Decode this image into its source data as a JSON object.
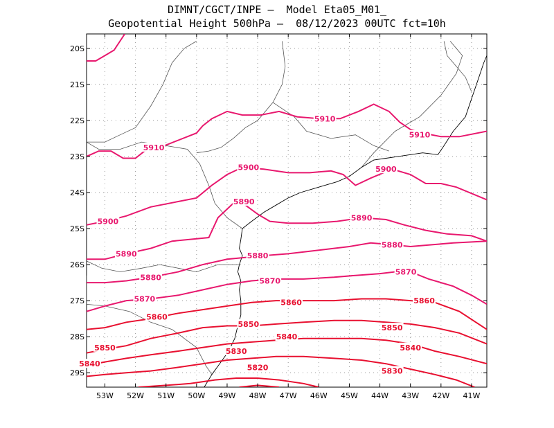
{
  "title": {
    "line1": "DIMNT/CGCT/INPE –  Model Eta05_M01_",
    "line2": "Geopotential Height 500hPa –  08/12/2023 00UTC fct=10h"
  },
  "axes": {
    "lat_labels": [
      "20S",
      "21S",
      "22S",
      "23S",
      "24S",
      "25S",
      "26S",
      "27S",
      "28S",
      "29S"
    ],
    "lat_values": [
      -20,
      -21,
      -22,
      -23,
      -24,
      -25,
      -26,
      -27,
      -28,
      -29
    ],
    "lon_labels": [
      "53W",
      "52W",
      "51W",
      "50W",
      "49W",
      "48W",
      "47W",
      "46W",
      "45W",
      "44W",
      "43W",
      "42W",
      "41W"
    ],
    "lon_values": [
      -53,
      -52,
      -51,
      -50,
      -49,
      -48,
      -47,
      -46,
      -45,
      -44,
      -43,
      -42,
      -41
    ],
    "lon_range": [
      -53.6,
      -40.5
    ],
    "lat_range": [
      -29.4,
      -19.6
    ],
    "grid": true
  },
  "colors": {
    "contour_magenta": "#e8186e",
    "contour_red": "#e81030",
    "coast": "#000000",
    "border": "#555555",
    "grid": "#999999"
  },
  "contours": [
    {
      "value": 5910,
      "color": "magenta",
      "pts": [
        [
          -53.6,
          -20.35
        ],
        [
          -53.3,
          -20.35
        ],
        [
          -53.0,
          -20.2
        ],
        [
          -52.7,
          -20.05
        ],
        [
          -52.35,
          -19.6
        ]
      ]
    },
    {
      "value": 5910,
      "color": "magenta",
      "pts": [
        [
          -53.6,
          -23.0
        ],
        [
          -53.2,
          -22.85
        ],
        [
          -52.8,
          -22.85
        ],
        [
          -52.4,
          -23.05
        ],
        [
          -52.0,
          -23.05
        ],
        [
          -51.7,
          -22.85
        ],
        [
          -51.2,
          -22.75
        ],
        [
          -50.6,
          -22.55
        ],
        [
          -50.0,
          -22.35
        ],
        [
          -49.8,
          -22.15
        ],
        [
          -49.5,
          -21.95
        ],
        [
          -49.0,
          -21.75
        ],
        [
          -48.5,
          -21.85
        ],
        [
          -47.9,
          -21.85
        ],
        [
          -47.3,
          -21.75
        ],
        [
          -46.7,
          -21.9
        ],
        [
          -46.0,
          -21.95
        ],
        [
          -45.3,
          -21.95
        ],
        [
          -44.7,
          -21.75
        ],
        [
          -44.2,
          -21.55
        ],
        [
          -43.7,
          -21.75
        ],
        [
          -43.35,
          -22.05
        ],
        [
          -43.0,
          -22.25
        ],
        [
          -42.6,
          -22.35
        ],
        [
          -42.0,
          -22.45
        ],
        [
          -41.4,
          -22.45
        ],
        [
          -40.5,
          -22.3
        ]
      ]
    },
    {
      "value": 5900,
      "color": "magenta",
      "pts": [
        [
          -53.6,
          -24.9
        ],
        [
          -53.0,
          -24.8
        ],
        [
          -52.3,
          -24.65
        ],
        [
          -51.5,
          -24.4
        ],
        [
          -50.6,
          -24.25
        ],
        [
          -50.0,
          -24.15
        ],
        [
          -49.5,
          -23.8
        ],
        [
          -49.0,
          -23.5
        ],
        [
          -48.5,
          -23.3
        ],
        [
          -47.8,
          -23.35
        ],
        [
          -47.0,
          -23.45
        ],
        [
          -46.3,
          -23.45
        ],
        [
          -45.6,
          -23.4
        ],
        [
          -45.2,
          -23.5
        ],
        [
          -44.8,
          -23.8
        ],
        [
          -44.3,
          -23.6
        ],
        [
          -43.6,
          -23.35
        ],
        [
          -43.0,
          -23.5
        ],
        [
          -42.5,
          -23.75
        ],
        [
          -42.0,
          -23.75
        ],
        [
          -41.5,
          -23.85
        ],
        [
          -40.5,
          -24.2
        ]
      ]
    },
    {
      "value": 5890,
      "color": "magenta",
      "pts": [
        [
          -53.6,
          -25.85
        ],
        [
          -53.0,
          -25.85
        ],
        [
          -52.3,
          -25.7
        ],
        [
          -51.5,
          -25.55
        ],
        [
          -50.8,
          -25.35
        ],
        [
          -50.2,
          -25.3
        ],
        [
          -49.6,
          -25.25
        ],
        [
          -49.3,
          -24.7
        ],
        [
          -48.8,
          -24.3
        ],
        [
          -48.4,
          -24.35
        ],
        [
          -48.0,
          -24.6
        ],
        [
          -47.6,
          -24.8
        ],
        [
          -47.0,
          -24.85
        ],
        [
          -46.2,
          -24.85
        ],
        [
          -45.4,
          -24.8
        ],
        [
          -44.6,
          -24.7
        ],
        [
          -43.8,
          -24.75
        ],
        [
          -43.2,
          -24.9
        ],
        [
          -42.5,
          -25.05
        ],
        [
          -41.8,
          -25.15
        ],
        [
          -41.0,
          -25.2
        ],
        [
          -40.5,
          -25.35
        ]
      ]
    },
    {
      "value": 5880,
      "color": "magenta",
      "pts": [
        [
          -53.6,
          -26.5
        ],
        [
          -53.0,
          -26.5
        ],
        [
          -52.3,
          -26.45
        ],
        [
          -51.5,
          -26.35
        ],
        [
          -50.6,
          -26.2
        ],
        [
          -49.8,
          -26.0
        ],
        [
          -49.0,
          -25.85
        ],
        [
          -48.4,
          -25.8
        ],
        [
          -47.8,
          -25.75
        ],
        [
          -47.0,
          -25.7
        ],
        [
          -46.0,
          -25.6
        ],
        [
          -45.0,
          -25.5
        ],
        [
          -44.3,
          -25.4
        ],
        [
          -43.6,
          -25.45
        ],
        [
          -43.0,
          -25.5
        ],
        [
          -42.3,
          -25.45
        ],
        [
          -41.6,
          -25.4
        ],
        [
          -40.5,
          -25.35
        ]
      ]
    },
    {
      "value": 5870,
      "color": "magenta",
      "pts": [
        [
          -53.6,
          -27.3
        ],
        [
          -53.0,
          -27.15
        ],
        [
          -52.3,
          -27.0
        ],
        [
          -51.5,
          -26.95
        ],
        [
          -50.6,
          -26.85
        ],
        [
          -49.8,
          -26.7
        ],
        [
          -49.0,
          -26.55
        ],
        [
          -48.2,
          -26.45
        ],
        [
          -47.4,
          -26.4
        ],
        [
          -46.5,
          -26.4
        ],
        [
          -45.5,
          -26.35
        ],
        [
          -44.8,
          -26.3
        ],
        [
          -44.0,
          -26.25
        ],
        [
          -43.5,
          -26.2
        ],
        [
          -43.0,
          -26.2
        ],
        [
          -42.4,
          -26.4
        ],
        [
          -41.6,
          -26.6
        ],
        [
          -41.0,
          -26.85
        ],
        [
          -40.5,
          -27.1
        ]
      ]
    },
    {
      "value": 5860,
      "color": "red",
      "pts": [
        [
          -53.6,
          -27.8
        ],
        [
          -53.0,
          -27.75
        ],
        [
          -52.3,
          -27.6
        ],
        [
          -51.5,
          -27.5
        ],
        [
          -50.6,
          -27.35
        ],
        [
          -49.8,
          -27.25
        ],
        [
          -49.0,
          -27.15
        ],
        [
          -48.2,
          -27.05
        ],
        [
          -47.4,
          -27.0
        ],
        [
          -46.5,
          -27.0
        ],
        [
          -45.5,
          -27.0
        ],
        [
          -44.6,
          -26.95
        ],
        [
          -43.8,
          -26.95
        ],
        [
          -43.0,
          -27.0
        ],
        [
          -42.2,
          -27.05
        ],
        [
          -41.4,
          -27.3
        ],
        [
          -40.5,
          -27.8
        ]
      ]
    },
    {
      "value": 5850,
      "color": "red",
      "pts": [
        [
          -53.6,
          -28.45
        ],
        [
          -53.0,
          -28.35
        ],
        [
          -52.3,
          -28.25
        ],
        [
          -51.5,
          -28.05
        ],
        [
          -50.6,
          -27.9
        ],
        [
          -49.8,
          -27.75
        ],
        [
          -49.0,
          -27.7
        ],
        [
          -48.2,
          -27.7
        ],
        [
          -47.4,
          -27.65
        ],
        [
          -46.5,
          -27.6
        ],
        [
          -45.5,
          -27.55
        ],
        [
          -44.6,
          -27.55
        ],
        [
          -43.8,
          -27.6
        ],
        [
          -43.0,
          -27.65
        ],
        [
          -42.2,
          -27.75
        ],
        [
          -41.4,
          -27.9
        ],
        [
          -40.5,
          -28.2
        ]
      ]
    },
    {
      "value": 5840,
      "color": "red",
      "pts": [
        [
          -53.6,
          -28.8
        ],
        [
          -53.0,
          -28.7
        ],
        [
          -52.3,
          -28.6
        ],
        [
          -51.5,
          -28.5
        ],
        [
          -50.6,
          -28.4
        ],
        [
          -49.8,
          -28.3
        ],
        [
          -49.0,
          -28.2
        ],
        [
          -48.2,
          -28.15
        ],
        [
          -47.4,
          -28.1
        ],
        [
          -46.5,
          -28.05
        ],
        [
          -45.5,
          -28.05
        ],
        [
          -44.6,
          -28.05
        ],
        [
          -43.8,
          -28.1
        ],
        [
          -43.0,
          -28.2
        ],
        [
          -42.2,
          -28.4
        ],
        [
          -41.4,
          -28.55
        ],
        [
          -40.5,
          -28.75
        ]
      ]
    },
    {
      "value": 5830,
      "color": "red",
      "pts": [
        [
          -53.6,
          -29.1
        ],
        [
          -53.0,
          -29.05
        ],
        [
          -52.3,
          -29.0
        ],
        [
          -51.5,
          -28.95
        ],
        [
          -50.6,
          -28.85
        ],
        [
          -49.8,
          -28.75
        ],
        [
          -49.0,
          -28.65
        ],
        [
          -48.2,
          -28.6
        ],
        [
          -47.4,
          -28.55
        ],
        [
          -46.5,
          -28.55
        ],
        [
          -45.5,
          -28.6
        ],
        [
          -44.6,
          -28.65
        ],
        [
          -43.8,
          -28.75
        ],
        [
          -43.0,
          -28.9
        ],
        [
          -42.2,
          -29.05
        ],
        [
          -41.5,
          -29.2
        ],
        [
          -40.9,
          -29.4
        ]
      ]
    },
    {
      "value": 5820,
      "color": "red",
      "pts": [
        [
          -51.9,
          -29.4
        ],
        [
          -51.0,
          -29.35
        ],
        [
          -50.2,
          -29.3
        ],
        [
          -49.4,
          -29.2
        ],
        [
          -48.7,
          -29.15
        ],
        [
          -48.0,
          -29.15
        ],
        [
          -47.3,
          -29.2
        ],
        [
          -46.5,
          -29.3
        ],
        [
          -46.0,
          -29.4
        ]
      ]
    },
    {
      "value": 5810,
      "color": "red",
      "pts": [
        [
          -48.6,
          -29.4
        ],
        [
          -48.0,
          -29.35
        ],
        [
          -47.3,
          -29.4
        ]
      ]
    }
  ],
  "contour_labels": [
    {
      "text": "5910",
      "lon": -51.4,
      "lat": -22.75
    },
    {
      "text": "5910",
      "lon": -45.8,
      "lat": -21.95
    },
    {
      "text": "5910",
      "lon": -42.7,
      "lat": -22.4
    },
    {
      "text": "5900",
      "lon": -48.3,
      "lat": -23.3
    },
    {
      "text": "5900",
      "lon": -43.8,
      "lat": -23.35
    },
    {
      "text": "5900",
      "lon": -52.9,
      "lat": -24.8
    },
    {
      "text": "5890",
      "lon": -48.45,
      "lat": -24.25
    },
    {
      "text": "5890",
      "lon": -52.3,
      "lat": -25.7
    },
    {
      "text": "5890",
      "lon": -44.6,
      "lat": -24.7
    },
    {
      "text": "5880",
      "lon": -51.5,
      "lat": -26.35
    },
    {
      "text": "5880",
      "lon": -48.0,
      "lat": -25.75
    },
    {
      "text": "5880",
      "lon": -43.6,
      "lat": -25.45
    },
    {
      "text": "5870",
      "lon": -51.7,
      "lat": -26.95
    },
    {
      "text": "5870",
      "lon": -47.6,
      "lat": -26.45
    },
    {
      "text": "5870",
      "lon": -43.15,
      "lat": -26.2
    },
    {
      "text": "5860",
      "lon": -51.3,
      "lat": -27.45
    },
    {
      "text": "5860",
      "lon": -46.9,
      "lat": -27.05
    },
    {
      "text": "5860",
      "lon": -42.55,
      "lat": -27.0
    },
    {
      "text": "5850",
      "lon": -53.0,
      "lat": -28.3
    },
    {
      "text": "5850",
      "lon": -48.3,
      "lat": -27.65
    },
    {
      "text": "5850",
      "lon": -43.6,
      "lat": -27.75
    },
    {
      "text": "5840",
      "lon": -47.05,
      "lat": -28.0
    },
    {
      "text": "5840",
      "lon": -43.0,
      "lat": -28.3
    },
    {
      "text": "5840",
      "lon": -53.5,
      "lat": -28.75
    },
    {
      "text": "5830",
      "lon": -48.7,
      "lat": -28.4
    },
    {
      "text": "5830",
      "lon": -43.6,
      "lat": -28.95
    },
    {
      "text": "5820",
      "lon": -48.0,
      "lat": -28.85
    }
  ],
  "coastline": [
    [
      -48.5,
      -25.0
    ],
    [
      -48.55,
      -25.3
    ],
    [
      -48.6,
      -25.55
    ],
    [
      -48.5,
      -25.75
    ],
    [
      -48.6,
      -26.0
    ],
    [
      -48.65,
      -26.2
    ],
    [
      -48.55,
      -26.45
    ],
    [
      -48.6,
      -26.7
    ],
    [
      -48.55,
      -27.0
    ],
    [
      -48.55,
      -27.4
    ],
    [
      -48.65,
      -27.7
    ],
    [
      -48.75,
      -28.05
    ],
    [
      -48.95,
      -28.4
    ],
    [
      -49.2,
      -28.7
    ],
    [
      -49.5,
      -29.05
    ],
    [
      -49.75,
      -29.4
    ]
  ],
  "coastline_se": [
    [
      -48.5,
      -25.0
    ],
    [
      -48.2,
      -24.8
    ],
    [
      -47.8,
      -24.55
    ],
    [
      -47.4,
      -24.35
    ],
    [
      -47.0,
      -24.15
    ],
    [
      -46.6,
      -24.0
    ],
    [
      -46.2,
      -23.9
    ],
    [
      -45.8,
      -23.8
    ],
    [
      -45.4,
      -23.7
    ],
    [
      -45.0,
      -23.55
    ],
    [
      -44.6,
      -23.3
    ],
    [
      -44.2,
      -23.1
    ],
    [
      -43.8,
      -23.05
    ],
    [
      -43.4,
      -23.0
    ],
    [
      -43.0,
      -22.95
    ],
    [
      -42.6,
      -22.9
    ],
    [
      -42.1,
      -22.95
    ],
    [
      -41.9,
      -22.7
    ],
    [
      -41.6,
      -22.3
    ],
    [
      -41.2,
      -21.9
    ],
    [
      -41.0,
      -21.4
    ],
    [
      -40.8,
      -20.9
    ],
    [
      -40.6,
      -20.4
    ],
    [
      -40.5,
      -20.2
    ]
  ],
  "borders": [
    [
      [
        -50.0,
        -22.9
      ],
      [
        -49.6,
        -22.85
      ],
      [
        -49.2,
        -22.75
      ],
      [
        -48.8,
        -22.5
      ],
      [
        -48.4,
        -22.2
      ],
      [
        -48.0,
        -22.0
      ],
      [
        -47.5,
        -21.5
      ],
      [
        -47.2,
        -21.0
      ],
      [
        -47.1,
        -20.5
      ],
      [
        -47.2,
        -19.8
      ]
    ],
    [
      [
        -47.5,
        -21.5
      ],
      [
        -46.8,
        -21.9
      ],
      [
        -46.4,
        -22.3
      ],
      [
        -45.6,
        -22.5
      ],
      [
        -44.8,
        -22.4
      ],
      [
        -44.2,
        -22.7
      ],
      [
        -43.7,
        -22.85
      ]
    ],
    [
      [
        -44.6,
        -23.3
      ],
      [
        -44.2,
        -22.9
      ],
      [
        -43.5,
        -22.3
      ],
      [
        -42.7,
        -21.9
      ],
      [
        -42.0,
        -21.3
      ],
      [
        -41.5,
        -20.7
      ],
      [
        -41.3,
        -20.2
      ],
      [
        -41.7,
        -19.8
      ]
    ],
    [
      [
        -53.6,
        -22.6
      ],
      [
        -53.0,
        -22.6
      ],
      [
        -52.5,
        -22.4
      ],
      [
        -52.0,
        -22.2
      ],
      [
        -51.5,
        -21.6
      ],
      [
        -51.1,
        -21.0
      ],
      [
        -50.8,
        -20.4
      ],
      [
        -50.4,
        -20.0
      ],
      [
        -50.0,
        -19.8
      ]
    ],
    [
      [
        -53.6,
        -22.6
      ],
      [
        -53.2,
        -22.8
      ],
      [
        -52.5,
        -22.8
      ],
      [
        -51.8,
        -22.6
      ],
      [
        -51.0,
        -22.7
      ],
      [
        -50.3,
        -22.8
      ],
      [
        -49.9,
        -23.2
      ],
      [
        -49.6,
        -23.8
      ],
      [
        -49.4,
        -24.3
      ],
      [
        -49.0,
        -24.7
      ],
      [
        -48.5,
        -25.0
      ]
    ],
    [
      [
        -53.6,
        -25.9
      ],
      [
        -53.1,
        -26.1
      ],
      [
        -52.5,
        -26.2
      ],
      [
        -51.8,
        -26.1
      ],
      [
        -51.2,
        -26.0
      ],
      [
        -50.6,
        -26.1
      ],
      [
        -50.0,
        -26.2
      ],
      [
        -49.3,
        -26.0
      ],
      [
        -48.6,
        -26.0
      ]
    ],
    [
      [
        -53.6,
        -27.1
      ],
      [
        -53.0,
        -27.15
      ],
      [
        -52.2,
        -27.3
      ],
      [
        -51.5,
        -27.6
      ],
      [
        -50.8,
        -27.8
      ],
      [
        -50.0,
        -28.3
      ],
      [
        -49.7,
        -28.8
      ],
      [
        -49.5,
        -29.05
      ]
    ],
    [
      [
        -53.6,
        -26.3
      ],
      [
        -53.6,
        -27.1
      ]
    ],
    [
      [
        -41.0,
        -21.2
      ],
      [
        -41.2,
        -20.8
      ],
      [
        -41.5,
        -20.5
      ],
      [
        -41.8,
        -20.2
      ],
      [
        -41.9,
        -19.8
      ]
    ]
  ]
}
